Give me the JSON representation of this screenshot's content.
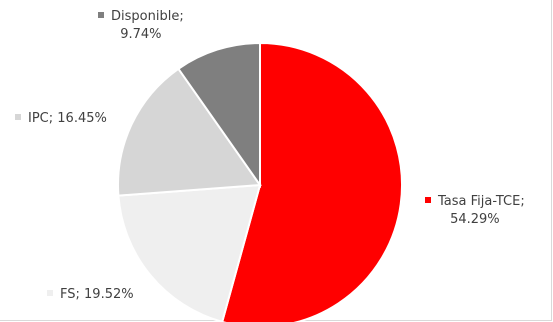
{
  "chart_data": {
    "type": "pie",
    "slices": [
      {
        "name": "Tasa Fija-TCE",
        "value": 54.29,
        "label_value": "54.29%",
        "color": "#ff0000"
      },
      {
        "name": "FS",
        "value": 19.52,
        "label_value": "19.52%",
        "color": "#efefef"
      },
      {
        "name": "IPC",
        "value": 16.45,
        "label_value": "16.45%",
        "color": "#d6d6d6"
      },
      {
        "name": "Disponible",
        "value": 9.74,
        "label_value": "9.74%",
        "color": "#7f7f7f"
      }
    ]
  }
}
